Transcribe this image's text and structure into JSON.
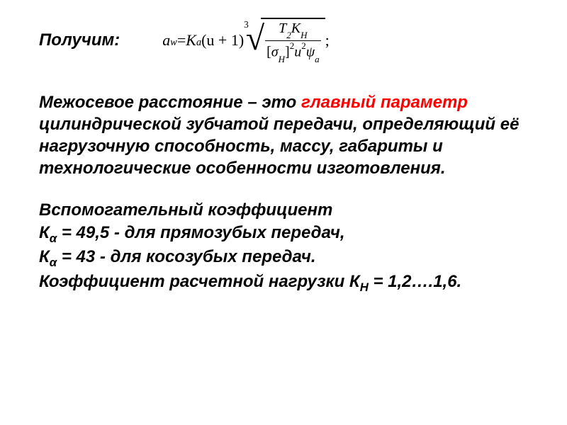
{
  "intro_label": "Получим:",
  "formula": {
    "lhs_var": "a",
    "lhs_sub": "w",
    "eq": " = ",
    "K": "K",
    "K_sub": "a",
    "paren": "(u  + 1)",
    "root_index": "3",
    "num_T": "T",
    "num_T_sub": "2",
    "num_K": "K",
    "num_K_sub": "H",
    "den_lb": "[",
    "den_sigma": "σ",
    "den_sigma_sub": "H",
    "den_rb": "]",
    "den_sq": "2",
    "den_u": "u",
    "den_u_sq": "2",
    "den_psi": "ψ",
    "den_psi_sub": "a",
    "tail": " ;"
  },
  "definition": {
    "pre": "Межосевое расстояние – это ",
    "highlight": "главный параметр",
    "post": " цилиндрической зубчатой передачи, определяющий её нагрузочную способность, массу, габариты и технологические особенности изготовления."
  },
  "aux_heading": "Вспомогательный коэффициент",
  "k1": {
    "sym": "К",
    "sub": "α",
    "text": "  = 49,5 - для прямозубых передач,"
  },
  "k2": {
    "sym": "К",
    "sub": "α",
    "text": "  = 43 - для косозубых передач."
  },
  "load": {
    "pre": "Коэффициент расчетной нагрузки К",
    "sub": "Н",
    "post": "  = 1,2….1,6."
  },
  "colors": {
    "highlight": "#ff0000",
    "text": "#000000",
    "bg": "#ffffff"
  },
  "font_sizes": {
    "body": 24,
    "formula": 22
  }
}
